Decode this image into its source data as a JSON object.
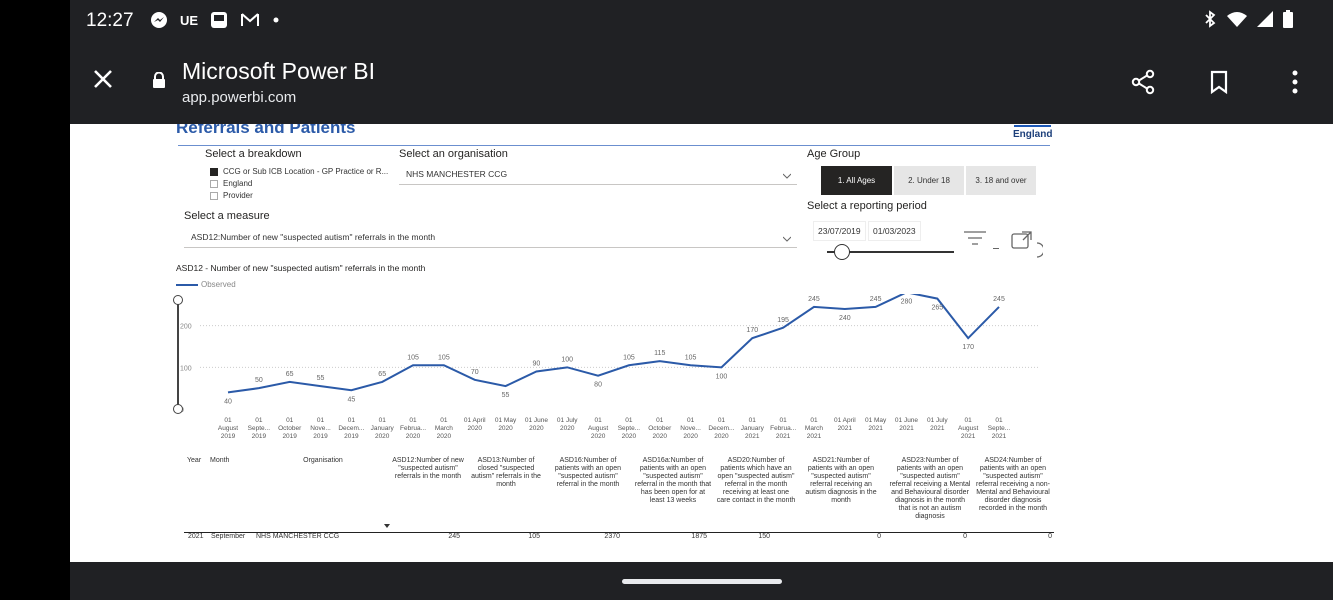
{
  "status": {
    "time": "12:27",
    "left_icons": [
      "messenger-icon",
      "ue-icon",
      "app-icon",
      "gmail-icon",
      "dot-icon"
    ],
    "ue_label": "UE"
  },
  "browser": {
    "title": "Microsoft Power BI",
    "url": "app.powerbi.com"
  },
  "report": {
    "title": "Referrals and Patients",
    "brand": "England",
    "breakdown_label": "Select a breakdown",
    "breakdown_options": [
      {
        "label": "CCG or Sub ICB Location - GP Practice or R...",
        "checked": true
      },
      {
        "label": "England",
        "checked": false
      },
      {
        "label": "Provider",
        "checked": false
      }
    ],
    "org_label": "Select an organisation",
    "org_value": "NHS MANCHESTER CCG",
    "measure_label": "Select a measure",
    "measure_value": "ASD12:Number of new \"suspected autism\" referrals in the month",
    "age_label": "Age Group",
    "age_options": [
      "1. All Ages",
      "2. Under 18",
      "3. 18 and over"
    ],
    "period_label": "Select a reporting period",
    "period_start": "23/07/2019",
    "period_end": "01/03/2023"
  },
  "chart_data": {
    "type": "line",
    "title": "ASD12 - Number of new \"suspected autism\" referrals in the month",
    "legend": "Observed",
    "ylim": [
      0,
      300
    ],
    "yticks": [
      0,
      100,
      200
    ],
    "categories": [
      "01 August 2019",
      "01 September 2019",
      "01 October 2019",
      "01 November 2019",
      "01 December 2019",
      "01 January 2020",
      "01 February 2020",
      "01 March 2020",
      "01 April 2020",
      "01 May 2020",
      "01 June 2020",
      "01 July 2020",
      "01 August 2020",
      "01 September 2020",
      "01 October 2020",
      "01 November 2020",
      "01 December 2020",
      "01 January 2021",
      "01 February 2021",
      "01 March 2021",
      "01 April 2021",
      "01 May 2021",
      "01 June 2021",
      "01 July 2021",
      "01 August 2021",
      "01 September 2021"
    ],
    "tick_labels": [
      [
        "01",
        "August",
        "2019"
      ],
      [
        "01",
        "Septe...",
        "2019"
      ],
      [
        "01",
        "October",
        "2019"
      ],
      [
        "01",
        "Nove...",
        "2019"
      ],
      [
        "01",
        "Decem...",
        "2019"
      ],
      [
        "01",
        "January",
        "2020"
      ],
      [
        "01",
        "Februa...",
        "2020"
      ],
      [
        "01",
        "March",
        "2020"
      ],
      [
        "01 April",
        "2020",
        ""
      ],
      [
        "01 May",
        "2020",
        ""
      ],
      [
        "01 June",
        "2020",
        ""
      ],
      [
        "01 July",
        "2020",
        ""
      ],
      [
        "01",
        "August",
        "2020"
      ],
      [
        "01",
        "Septe...",
        "2020"
      ],
      [
        "01",
        "October",
        "2020"
      ],
      [
        "01",
        "Nove...",
        "2020"
      ],
      [
        "01",
        "Decem...",
        "2020"
      ],
      [
        "01",
        "January",
        "2021"
      ],
      [
        "01",
        "Februa...",
        "2021"
      ],
      [
        "01",
        "March",
        "2021"
      ],
      [
        "01 April",
        "2021",
        ""
      ],
      [
        "01 May",
        "2021",
        ""
      ],
      [
        "01 June",
        "2021",
        ""
      ],
      [
        "01 July",
        "2021",
        ""
      ],
      [
        "01",
        "August",
        "2021"
      ],
      [
        "01",
        "Septe...",
        "2021"
      ]
    ],
    "values": [
      40,
      50,
      65,
      55,
      45,
      65,
      105,
      105,
      70,
      55,
      90,
      100,
      80,
      105,
      115,
      105,
      100,
      170,
      195,
      245,
      240,
      245,
      280,
      265,
      170,
      245
    ],
    "label_pos": [
      "below",
      "above",
      "above",
      "above",
      "below",
      "above",
      "above",
      "above",
      "above",
      "below",
      "above",
      "above",
      "below",
      "above",
      "above",
      "above",
      "below",
      "above",
      "above",
      "above",
      "below",
      "above",
      "below",
      "below",
      "below",
      "above"
    ],
    "color": "#2b5aa8"
  },
  "table": {
    "headers": [
      "Year",
      "Month",
      "Organisation",
      "ASD12:Number of new \"suspected autism\" referrals in the month",
      "ASD13:Number of closed \"suspected autism\" referrals in the month",
      "ASD16:Number of patients with an open \"suspected autism\" referral in the month",
      "ASD16a:Number of patients with an open \"suspected autism\" referral in the month that has been open for at least 13 weeks",
      "ASD20:Number of patients which have an open \"suspected autism\" referral in the month receiving at least one care contact in the month",
      "ASD21:Number of patients with an open \"suspected autism\" referral receiving an autism diagnosis in the month",
      "ASD23:Number of patients with an open \"suspected autism\" referral receiving a Mental and Behavioural disorder diagnosis in the month that is not an autism diagnosis",
      "ASD24:Number of patients with an open \"suspected autism\" referral receiving a non-Mental and Behavioural disorder diagnosis recorded in the month"
    ],
    "row": [
      "2021",
      "September",
      "NHS MANCHESTER CCG",
      "245",
      "105",
      "2370",
      "1875",
      "150",
      "0",
      "0",
      "0"
    ]
  }
}
